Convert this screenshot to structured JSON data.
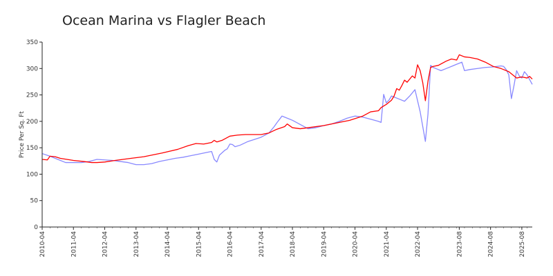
{
  "chart_data": {
    "type": "line",
    "title": "Ocean Marina vs Flagler Beach",
    "xlabel": "",
    "ylabel": "Price Per Sq. Ft",
    "ylim": [
      0,
      350
    ],
    "y_ticks": [
      0,
      50,
      100,
      150,
      200,
      250,
      300,
      350
    ],
    "x_range": [
      "2010-04",
      "2025-12"
    ],
    "x_ticks": [
      "2010-04",
      "2011-04",
      "2012-04",
      "2013-04",
      "2014-04",
      "2015-04",
      "2016-04",
      "2017-04",
      "2018-04",
      "2019-04",
      "2020-04",
      "2021-04",
      "2022-04",
      "2023-08",
      "2024-08",
      "2025-08"
    ],
    "grid": false,
    "legend": "none",
    "series": [
      {
        "color": "#ff0000",
        "points": [
          [
            "2010-04",
            128
          ],
          [
            "2010-06",
            127
          ],
          [
            "2010-07",
            134
          ],
          [
            "2010-09",
            133
          ],
          [
            "2010-11",
            130
          ],
          [
            "2011-04",
            126
          ],
          [
            "2011-08",
            124
          ],
          [
            "2011-11",
            122
          ],
          [
            "2012-01",
            122
          ],
          [
            "2012-04",
            123
          ],
          [
            "2012-08",
            126
          ],
          [
            "2013-02",
            130
          ],
          [
            "2013-07",
            133
          ],
          [
            "2014-02",
            140
          ],
          [
            "2014-08",
            147
          ],
          [
            "2014-12",
            154
          ],
          [
            "2015-03",
            158
          ],
          [
            "2015-06",
            157
          ],
          [
            "2015-09",
            160
          ],
          [
            "2015-10",
            164
          ],
          [
            "2015-11",
            161
          ],
          [
            "2016-01",
            164
          ],
          [
            "2016-04",
            172
          ],
          [
            "2016-07",
            174
          ],
          [
            "2016-10",
            175
          ],
          [
            "2017-04",
            175
          ],
          [
            "2017-07",
            178
          ],
          [
            "2017-10",
            185
          ],
          [
            "2018-01",
            190
          ],
          [
            "2018-02",
            195
          ],
          [
            "2018-04",
            188
          ],
          [
            "2018-07",
            186
          ],
          [
            "2018-10",
            188
          ],
          [
            "2019-04",
            192
          ],
          [
            "2019-10",
            198
          ],
          [
            "2020-02",
            202
          ],
          [
            "2020-07",
            210
          ],
          [
            "2020-10",
            218
          ],
          [
            "2021-01",
            220
          ],
          [
            "2021-02",
            226
          ],
          [
            "2021-04",
            232
          ],
          [
            "2021-06",
            240
          ],
          [
            "2021-07",
            248
          ],
          [
            "2021-08",
            262
          ],
          [
            "2021-09",
            259
          ],
          [
            "2021-10",
            268
          ],
          [
            "2021-11",
            278
          ],
          [
            "2021-12",
            274
          ],
          [
            "2022-02",
            286
          ],
          [
            "2022-03",
            282
          ],
          [
            "2022-04",
            307
          ],
          [
            "2022-05",
            296
          ],
          [
            "2022-06",
            273
          ],
          [
            "2022-07",
            239
          ],
          [
            "2022-08",
            276
          ],
          [
            "2022-09",
            302
          ],
          [
            "2022-10",
            304
          ],
          [
            "2022-12",
            306
          ],
          [
            "2023-03",
            314
          ],
          [
            "2023-05",
            318
          ],
          [
            "2023-07",
            316
          ],
          [
            "2023-08",
            326
          ],
          [
            "2023-10",
            322
          ],
          [
            "2023-12",
            321
          ],
          [
            "2024-03",
            318
          ],
          [
            "2024-06",
            312
          ],
          [
            "2024-09",
            304
          ],
          [
            "2024-12",
            300
          ],
          [
            "2025-03",
            294
          ],
          [
            "2025-05",
            286
          ],
          [
            "2025-06",
            282
          ],
          [
            "2025-08",
            284
          ],
          [
            "2025-10",
            282
          ],
          [
            "2025-11",
            285
          ],
          [
            "2025-12",
            280
          ]
        ]
      },
      {
        "color": "#8888ff",
        "points": [
          [
            "2010-04",
            139
          ],
          [
            "2010-07",
            134
          ],
          [
            "2010-10",
            128
          ],
          [
            "2011-01",
            122
          ],
          [
            "2011-04",
            122
          ],
          [
            "2011-07",
            122
          ],
          [
            "2011-10",
            124
          ],
          [
            "2012-01",
            128
          ],
          [
            "2012-04",
            127
          ],
          [
            "2012-07",
            126
          ],
          [
            "2012-10",
            124
          ],
          [
            "2013-01",
            122
          ],
          [
            "2013-04",
            118
          ],
          [
            "2013-07",
            118
          ],
          [
            "2013-10",
            120
          ],
          [
            "2014-01",
            124
          ],
          [
            "2014-04",
            127
          ],
          [
            "2014-07",
            130
          ],
          [
            "2014-10",
            132
          ],
          [
            "2015-01",
            135
          ],
          [
            "2015-04",
            138
          ],
          [
            "2015-07",
            141
          ],
          [
            "2015-09",
            143
          ],
          [
            "2015-10",
            128
          ],
          [
            "2015-11",
            123
          ],
          [
            "2015-12",
            136
          ],
          [
            "2016-02",
            145
          ],
          [
            "2016-03",
            148
          ],
          [
            "2016-04",
            157
          ],
          [
            "2016-05",
            156
          ],
          [
            "2016-06",
            152
          ],
          [
            "2016-08",
            155
          ],
          [
            "2016-11",
            162
          ],
          [
            "2017-01",
            165
          ],
          [
            "2017-04",
            170
          ],
          [
            "2017-07",
            178
          ],
          [
            "2017-09",
            190
          ],
          [
            "2017-10",
            197
          ],
          [
            "2017-12",
            210
          ],
          [
            "2018-01",
            208
          ],
          [
            "2018-04",
            202
          ],
          [
            "2018-07",
            194
          ],
          [
            "2018-10",
            186
          ],
          [
            "2019-01",
            188
          ],
          [
            "2019-04",
            192
          ],
          [
            "2019-07",
            195
          ],
          [
            "2019-10",
            200
          ],
          [
            "2020-01",
            206
          ],
          [
            "2020-04",
            210
          ],
          [
            "2020-07",
            208
          ],
          [
            "2020-10",
            204
          ],
          [
            "2021-01",
            200
          ],
          [
            "2021-02",
            198
          ],
          [
            "2021-03",
            251
          ],
          [
            "2021-04",
            235
          ],
          [
            "2021-05",
            240
          ],
          [
            "2021-06",
            248
          ],
          [
            "2021-09",
            242
          ],
          [
            "2021-11",
            238
          ],
          [
            "2022-01",
            248
          ],
          [
            "2022-03",
            260
          ],
          [
            "2022-05",
            218
          ],
          [
            "2022-07",
            162
          ],
          [
            "2022-08",
            214
          ],
          [
            "2022-09",
            306
          ],
          [
            "2022-10",
            302
          ],
          [
            "2022-11",
            300
          ],
          [
            "2023-01",
            296
          ],
          [
            "2023-03",
            300
          ],
          [
            "2023-05",
            304
          ],
          [
            "2023-07",
            308
          ],
          [
            "2023-09",
            312
          ],
          [
            "2023-10",
            296
          ],
          [
            "2023-12",
            298
          ],
          [
            "2024-03",
            300
          ],
          [
            "2024-06",
            302
          ],
          [
            "2024-09",
            303
          ],
          [
            "2024-12",
            305
          ],
          [
            "2025-01",
            304
          ],
          [
            "2025-02",
            298
          ],
          [
            "2025-03",
            288
          ],
          [
            "2025-04",
            243
          ],
          [
            "2025-05",
            268
          ],
          [
            "2025-06",
            296
          ],
          [
            "2025-07",
            286
          ],
          [
            "2025-08",
            282
          ],
          [
            "2025-09",
            294
          ],
          [
            "2025-10",
            288
          ],
          [
            "2025-12",
            270
          ]
        ]
      }
    ]
  }
}
